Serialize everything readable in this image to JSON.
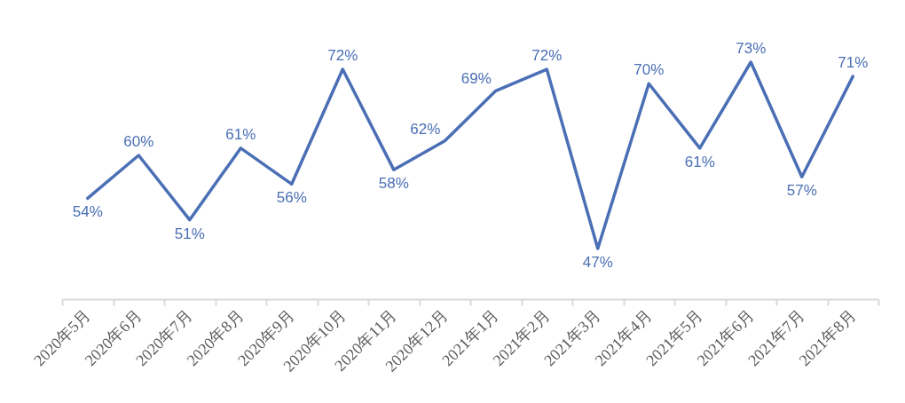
{
  "chart_data": {
    "type": "line",
    "categories": [
      "2020年5月",
      "2020年6月",
      "2020年7月",
      "2020年8月",
      "2020年9月",
      "2020年10月",
      "2020年11月",
      "2020年12月",
      "2021年1月",
      "2021年2月",
      "2021年3月",
      "2021年4月",
      "2021年5月",
      "2021年6月",
      "2021年7月",
      "2021年8月"
    ],
    "values": [
      54,
      60,
      51,
      61,
      56,
      72,
      58,
      62,
      69,
      72,
      47,
      70,
      61,
      73,
      57,
      71
    ],
    "value_labels": [
      "54%",
      "60%",
      "51%",
      "61%",
      "56%",
      "72%",
      "58%",
      "62%",
      "69%",
      "72%",
      "47%",
      "70%",
      "61%",
      "73%",
      "57%",
      "71%"
    ],
    "color": "#4a6fb5",
    "tick_labels": "x"
  }
}
